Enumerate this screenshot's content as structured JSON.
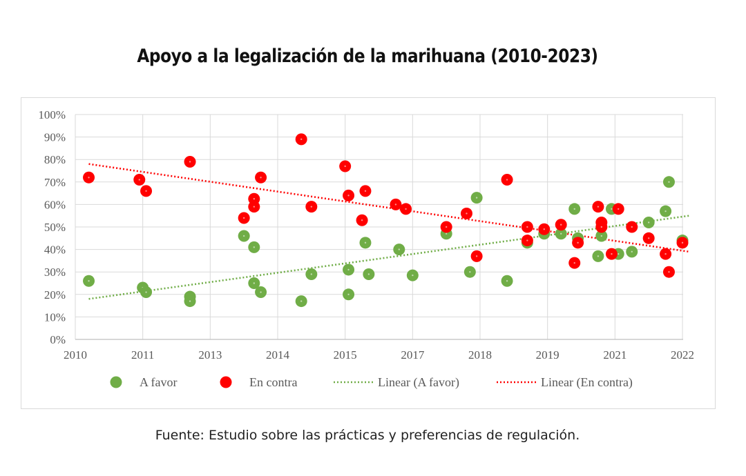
{
  "title": "Apoyo a la legalización de la marihuana (2010-2023)",
  "source": "Fuente: Estudio sobre las prácticas y preferencias de regulación.",
  "colors": {
    "favor": "#70AD47",
    "contra": "#FF0000",
    "grid": "#d9d9d9"
  },
  "chart_data": {
    "type": "scatter",
    "title": "Apoyo a la legalización de la marihuana (2010-2023)",
    "x_tick_labels": [
      "2010",
      "2011",
      "2013",
      "2014",
      "2015",
      "2017",
      "2018",
      "2019",
      "2021",
      "2022"
    ],
    "xlim": [
      0,
      9
    ],
    "ylim": [
      0,
      100
    ],
    "y_tick_labels": [
      "0%",
      "10%",
      "20%",
      "30%",
      "40%",
      "50%",
      "60%",
      "70%",
      "80%",
      "90%",
      "100%"
    ],
    "grid": true,
    "legend_position": "bottom",
    "series": [
      {
        "name": "A favor",
        "key": "favor",
        "points": [
          [
            0.2,
            26
          ],
          [
            1.0,
            23
          ],
          [
            1.05,
            21
          ],
          [
            1.7,
            19
          ],
          [
            1.7,
            17
          ],
          [
            2.5,
            46
          ],
          [
            2.65,
            41
          ],
          [
            2.65,
            25
          ],
          [
            2.75,
            21
          ],
          [
            3.35,
            17
          ],
          [
            3.5,
            29
          ],
          [
            4.05,
            31
          ],
          [
            4.05,
            20
          ],
          [
            4.3,
            43
          ],
          [
            4.35,
            29
          ],
          [
            4.8,
            40
          ],
          [
            5.0,
            28.5
          ],
          [
            5.5,
            47
          ],
          [
            5.85,
            30
          ],
          [
            5.95,
            63
          ],
          [
            6.4,
            26
          ],
          [
            6.7,
            43
          ],
          [
            6.95,
            47
          ],
          [
            7.2,
            47
          ],
          [
            7.4,
            58
          ],
          [
            7.45,
            45
          ],
          [
            7.75,
            37
          ],
          [
            7.8,
            46
          ],
          [
            7.95,
            58
          ],
          [
            8.05,
            38
          ],
          [
            8.25,
            39
          ],
          [
            8.5,
            52
          ],
          [
            8.75,
            57
          ],
          [
            8.8,
            70
          ],
          [
            9.0,
            44
          ]
        ]
      },
      {
        "name": "En contra",
        "key": "contra",
        "points": [
          [
            0.2,
            72
          ],
          [
            0.95,
            71
          ],
          [
            1.05,
            66
          ],
          [
            1.7,
            79
          ],
          [
            2.5,
            54
          ],
          [
            2.65,
            62.5
          ],
          [
            2.65,
            59
          ],
          [
            2.75,
            72
          ],
          [
            3.35,
            89
          ],
          [
            3.5,
            59
          ],
          [
            4.0,
            77
          ],
          [
            4.05,
            64
          ],
          [
            4.25,
            53
          ],
          [
            4.3,
            66
          ],
          [
            4.75,
            60
          ],
          [
            4.9,
            58
          ],
          [
            5.5,
            50
          ],
          [
            5.8,
            56
          ],
          [
            5.95,
            37
          ],
          [
            6.4,
            71
          ],
          [
            6.7,
            50
          ],
          [
            6.7,
            44
          ],
          [
            6.95,
            49
          ],
          [
            7.2,
            51
          ],
          [
            7.4,
            34
          ],
          [
            7.45,
            43
          ],
          [
            7.75,
            59
          ],
          [
            7.8,
            52
          ],
          [
            7.8,
            50
          ],
          [
            7.95,
            38
          ],
          [
            8.05,
            58
          ],
          [
            8.25,
            50
          ],
          [
            8.5,
            45
          ],
          [
            8.75,
            38
          ],
          [
            8.8,
            30
          ],
          [
            9.0,
            43
          ]
        ]
      }
    ],
    "trendlines": [
      {
        "name": "Linear (A favor)",
        "key": "favor",
        "from": [
          0.2,
          18
        ],
        "to": [
          9.1,
          55
        ]
      },
      {
        "name": "Linear (En contra)",
        "key": "contra",
        "from": [
          0.2,
          78
        ],
        "to": [
          9.1,
          39
        ]
      }
    ],
    "legend": [
      {
        "label": "A favor",
        "key": "favor",
        "kind": "marker"
      },
      {
        "label": "En contra",
        "key": "contra",
        "kind": "marker"
      },
      {
        "label": "Linear (A favor)",
        "key": "favor",
        "kind": "line"
      },
      {
        "label": "Linear (En contra)",
        "key": "contra",
        "kind": "line"
      }
    ]
  }
}
